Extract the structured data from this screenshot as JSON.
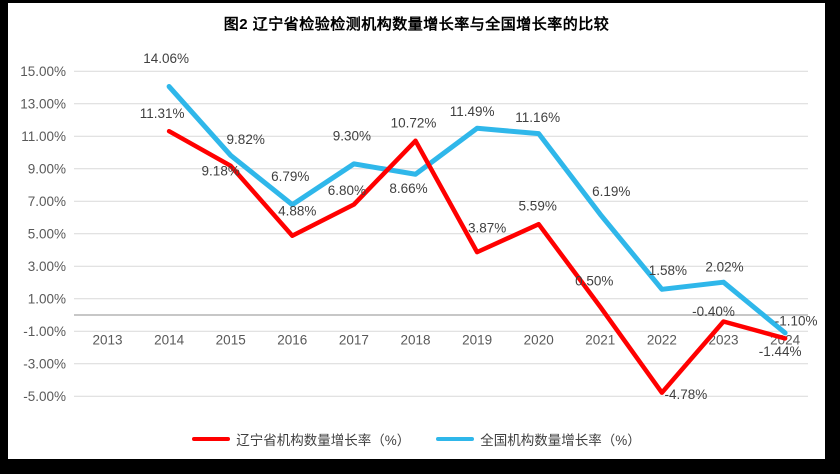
{
  "chart_data": {
    "type": "line",
    "title": "图2 辽宁省检验检测机构数量增长率与全国增长率的比较",
    "categories": [
      "2013",
      "2014",
      "2015",
      "2016",
      "2017",
      "2018",
      "2019",
      "2020",
      "2021",
      "2022",
      "2023",
      "2024"
    ],
    "series": [
      {
        "name": "辽宁省机构数量增长率（%）",
        "color": "#FF0000",
        "values": [
          null,
          11.31,
          9.18,
          4.88,
          6.8,
          10.72,
          3.87,
          5.59,
          0.5,
          -4.78,
          -0.4,
          -1.44
        ]
      },
      {
        "name": "全国机构数量增长率（%）",
        "color": "#2FB7EA",
        "values": [
          null,
          14.06,
          9.82,
          6.79,
          9.3,
          8.66,
          11.49,
          11.16,
          6.19,
          1.58,
          2.02,
          -1.1
        ]
      }
    ],
    "ylim": [
      -5,
      15
    ],
    "ytick_step": 2,
    "ytick_labels": [
      "15.00%",
      "13.00%",
      "11.00%",
      "9.00%",
      "7.00%",
      "5.00%",
      "3.00%",
      "1.00%",
      "-1.00%",
      "-3.00%",
      "-5.00%"
    ],
    "data_label_format": "0.00%",
    "grid": true,
    "legend_position": "bottom",
    "axis_label_color": "#595959",
    "data_label_color": "#404040",
    "gridline_color": "#D9D9D9",
    "axis_line_color": "#BFBFBF"
  }
}
